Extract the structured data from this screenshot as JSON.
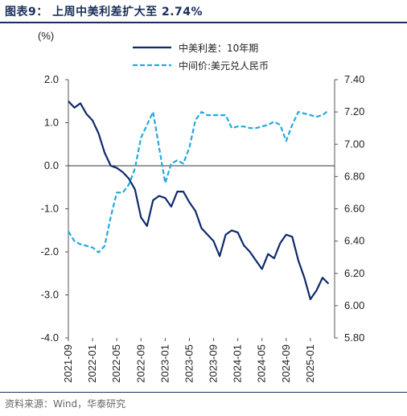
{
  "figure": {
    "title": "图表9： 上周中美利差扩大至 2.74%",
    "source": "资料来源：Wind，华泰研究"
  },
  "chart_data": {
    "type": "line",
    "left_axis": {
      "unit_label": "(%)",
      "ylim": [
        -4.0,
        2.0
      ],
      "ticks": [
        "2.0",
        "1.0",
        "0.0",
        "-1.0",
        "-2.0",
        "-3.0",
        "-4.0"
      ]
    },
    "right_axis": {
      "ylim": [
        5.8,
        7.4
      ],
      "ticks": [
        "7.40",
        "7.20",
        "7.00",
        "6.80",
        "6.60",
        "6.40",
        "6.20",
        "6.00",
        "5.80"
      ]
    },
    "x_ticks": [
      "2021-09",
      "2022-01",
      "2022-05",
      "2022-09",
      "2023-01",
      "2023-05",
      "2023-09",
      "2024-01",
      "2024-05",
      "2024-09",
      "2025-01"
    ],
    "legend_position": "top-center",
    "series": [
      {
        "name": "中美利差：10年期",
        "axis": "left",
        "color": "#0f2a6b",
        "style": "solid",
        "x": [
          "2021-09",
          "2021-10",
          "2021-11",
          "2021-12",
          "2022-01",
          "2022-02",
          "2022-03",
          "2022-04",
          "2022-05",
          "2022-06",
          "2022-07",
          "2022-08",
          "2022-09",
          "2022-10",
          "2022-11",
          "2022-12",
          "2023-01",
          "2023-02",
          "2023-03",
          "2023-04",
          "2023-05",
          "2023-06",
          "2023-07",
          "2023-08",
          "2023-09",
          "2023-10",
          "2023-11",
          "2023-12",
          "2024-01",
          "2024-02",
          "2024-03",
          "2024-04",
          "2024-05",
          "2024-06",
          "2024-07",
          "2024-08",
          "2024-09",
          "2024-10",
          "2024-11",
          "2024-12",
          "2025-01",
          "2025-02",
          "2025-03",
          "2025-04"
        ],
        "values": [
          1.5,
          1.35,
          1.45,
          1.2,
          1.05,
          0.75,
          0.3,
          0.0,
          -0.05,
          -0.15,
          -0.3,
          -0.55,
          -1.2,
          -1.4,
          -0.8,
          -0.7,
          -0.75,
          -0.95,
          -0.6,
          -0.6,
          -0.85,
          -1.05,
          -1.45,
          -1.6,
          -1.75,
          -2.1,
          -1.6,
          -1.5,
          -1.55,
          -1.85,
          -2.0,
          -2.2,
          -2.4,
          -2.05,
          -2.15,
          -1.8,
          -1.6,
          -1.65,
          -2.2,
          -2.6,
          -3.1,
          -2.9,
          -2.6,
          -2.74
        ]
      },
      {
        "name": "中间价:美元兑人民币",
        "axis": "right",
        "color": "#22a9e0",
        "style": "dashed",
        "x": [
          "2021-09",
          "2021-10",
          "2021-11",
          "2021-12",
          "2022-01",
          "2022-02",
          "2022-03",
          "2022-04",
          "2022-05",
          "2022-06",
          "2022-07",
          "2022-08",
          "2022-09",
          "2022-10",
          "2022-11",
          "2022-12",
          "2023-01",
          "2023-02",
          "2023-03",
          "2023-04",
          "2023-05",
          "2023-06",
          "2023-07",
          "2023-08",
          "2023-09",
          "2023-10",
          "2023-11",
          "2023-12",
          "2024-01",
          "2024-02",
          "2024-03",
          "2024-04",
          "2024-05",
          "2024-06",
          "2024-07",
          "2024-08",
          "2024-09",
          "2024-10",
          "2024-11",
          "2024-12",
          "2025-01",
          "2025-02",
          "2025-03",
          "2025-04"
        ],
        "values": [
          6.46,
          6.4,
          6.38,
          6.37,
          6.36,
          6.33,
          6.37,
          6.55,
          6.7,
          6.7,
          6.75,
          6.85,
          7.04,
          7.12,
          7.2,
          6.98,
          6.76,
          6.88,
          6.9,
          6.88,
          6.98,
          7.15,
          7.2,
          7.18,
          7.18,
          7.18,
          7.18,
          7.1,
          7.11,
          7.11,
          7.1,
          7.1,
          7.11,
          7.12,
          7.14,
          7.12,
          7.02,
          7.12,
          7.2,
          7.19,
          7.18,
          7.17,
          7.18,
          7.21
        ]
      }
    ]
  }
}
